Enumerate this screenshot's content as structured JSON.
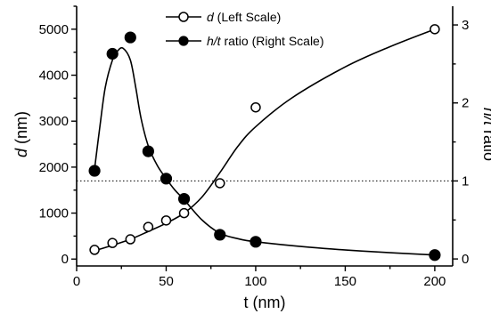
{
  "chart_data": {
    "type": "scatter",
    "x_axis": {
      "label": "t (nm)",
      "range": [
        0,
        210
      ],
      "ticks": [
        0,
        50,
        100,
        150,
        200
      ],
      "tick_labels": [
        "0",
        "50",
        "100",
        "150",
        "200"
      ]
    },
    "y_left_axis": {
      "label_italic": "d",
      "label_rest": " (nm)",
      "range": [
        -150,
        5500
      ],
      "ticks": [
        0,
        1000,
        2000,
        3000,
        4000,
        5000
      ],
      "tick_labels": [
        "0",
        "1000",
        "2000",
        "3000",
        "4000",
        "5000"
      ]
    },
    "y_right_axis": {
      "label_italic": "h/t",
      "label_rest": " ratio",
      "range": [
        -0.09,
        3.24
      ],
      "ticks": [
        0,
        1,
        2,
        3
      ],
      "tick_labels": [
        "0",
        "1",
        "2",
        "3"
      ]
    },
    "reference_line": {
      "axis": "right",
      "y": 1
    },
    "series": [
      {
        "name_italic": "d",
        "name_rest": " (Left Scale)",
        "axis": "left",
        "marker": "open-circle",
        "x": [
          10,
          20,
          30,
          40,
          50,
          60,
          80,
          100,
          200
        ],
        "y": [
          200,
          350,
          430,
          700,
          840,
          1000,
          1650,
          3300,
          5000
        ],
        "fit_x": [
          10,
          20,
          30,
          40,
          50,
          60,
          70,
          80,
          90,
          100,
          120,
          150,
          175,
          200
        ],
        "fit_y": [
          180,
          300,
          430,
          600,
          780,
          1000,
          1350,
          1880,
          2450,
          2880,
          3500,
          4180,
          4620,
          5000
        ]
      },
      {
        "name_italic": "h/t",
        "name_rest": " ratio (Right Scale)",
        "axis": "right",
        "marker": "filled-circle",
        "x": [
          10,
          20,
          30,
          40,
          50,
          60,
          80,
          100,
          200
        ],
        "y": [
          1.13,
          2.63,
          2.84,
          1.38,
          1.03,
          0.77,
          0.31,
          0.22,
          0.05
        ],
        "fit_x": [
          10,
          13,
          16,
          20,
          23,
          26,
          30,
          33,
          36,
          40,
          45,
          50,
          55,
          60,
          70,
          80,
          90,
          100,
          130,
          160,
          200
        ],
        "fit_y": [
          1.15,
          1.7,
          2.2,
          2.55,
          2.67,
          2.7,
          2.55,
          2.2,
          1.8,
          1.45,
          1.2,
          1.03,
          0.88,
          0.76,
          0.5,
          0.33,
          0.26,
          0.22,
          0.15,
          0.1,
          0.05
        ]
      }
    ]
  }
}
